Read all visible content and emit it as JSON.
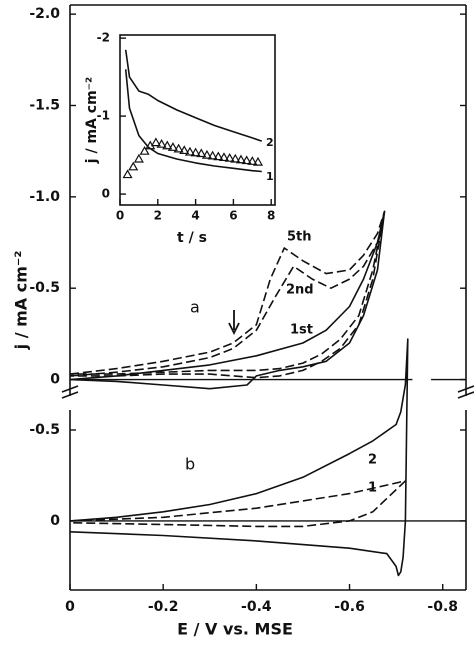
{
  "chart_data": [
    {
      "type": "line",
      "panel_label": "a",
      "ylabel": "j / mA cm⁻²",
      "xlim": [
        0,
        -0.85
      ],
      "ylim": [
        -2.05,
        0.09
      ],
      "yticks": [
        {
          "value": -2,
          "label": "-2.0"
        },
        -1.5,
        {
          "value": -1,
          "label": "-1.0"
        },
        -0.5,
        0
      ],
      "series": [
        {
          "name": "1st",
          "color": "#111111",
          "line_style": "solid",
          "x": [
            0,
            -0.1,
            -0.2,
            -0.3,
            -0.4,
            -0.5,
            -0.55,
            -0.6,
            -0.63,
            -0.66,
            -0.675,
            -0.66,
            -0.63,
            -0.6,
            -0.55,
            -0.5,
            -0.45,
            -0.4,
            -0.38,
            -0.3,
            -0.2,
            -0.1,
            0
          ],
          "values": [
            0,
            -0.02,
            -0.05,
            -0.08,
            -0.13,
            -0.2,
            -0.27,
            -0.4,
            -0.55,
            -0.75,
            -0.92,
            -0.6,
            -0.35,
            -0.2,
            -0.1,
            -0.07,
            -0.05,
            -0.02,
            0.03,
            0.05,
            0.03,
            0.01,
            0
          ]
        },
        {
          "name": "2nd",
          "color": "#111111",
          "line_style": "dashed",
          "x": [
            0,
            -0.1,
            -0.2,
            -0.3,
            -0.35,
            -0.4,
            -0.44,
            -0.48,
            -0.52,
            -0.56,
            -0.6,
            -0.63,
            -0.66,
            -0.675,
            -0.65,
            -0.62,
            -0.58,
            -0.54,
            -0.5,
            -0.45,
            -0.4,
            -0.35,
            -0.3,
            -0.2,
            -0.1,
            0
          ],
          "values": [
            -0.02,
            -0.04,
            -0.07,
            -0.12,
            -0.17,
            -0.27,
            -0.45,
            -0.62,
            -0.55,
            -0.5,
            -0.55,
            -0.62,
            -0.75,
            -0.92,
            -0.55,
            -0.3,
            -0.17,
            -0.1,
            -0.05,
            -0.02,
            -0.01,
            -0.02,
            -0.03,
            -0.03,
            -0.02,
            -0.02
          ]
        },
        {
          "name": "5th",
          "color": "#111111",
          "line_style": "dashed",
          "x": [
            0,
            -0.1,
            -0.2,
            -0.3,
            -0.35,
            -0.4,
            -0.43,
            -0.46,
            -0.5,
            -0.55,
            -0.6,
            -0.63,
            -0.66,
            -0.675,
            -0.65,
            -0.62,
            -0.58,
            -0.54,
            -0.5,
            -0.45,
            -0.4,
            -0.35,
            -0.3,
            -0.2,
            -0.1,
            0
          ],
          "values": [
            -0.03,
            -0.06,
            -0.1,
            -0.15,
            -0.2,
            -0.3,
            -0.55,
            -0.72,
            -0.65,
            -0.58,
            -0.6,
            -0.68,
            -0.8,
            -0.92,
            -0.6,
            -0.35,
            -0.22,
            -0.14,
            -0.09,
            -0.06,
            -0.05,
            -0.05,
            -0.05,
            -0.04,
            -0.03,
            -0.03
          ]
        }
      ]
    },
    {
      "type": "line",
      "panel_label": "b",
      "xlabel": "E / V vs. MSE",
      "xlim": [
        0,
        -0.85
      ],
      "ylim": [
        -0.61,
        0.38
      ],
      "xticks": [
        0,
        -0.2,
        -0.4,
        -0.6,
        -0.8
      ],
      "yticks": [
        -0.5,
        0
      ],
      "series": [
        {
          "name": "1",
          "color": "#111111",
          "line_style": "dashed",
          "x": [
            0,
            -0.2,
            -0.4,
            -0.6,
            -0.72,
            -0.65,
            -0.6,
            -0.5,
            -0.4,
            -0.2,
            0
          ],
          "values": [
            0,
            -0.02,
            -0.07,
            -0.15,
            -0.22,
            -0.05,
            0,
            0.03,
            0.03,
            0.02,
            0.01
          ]
        },
        {
          "name": "2",
          "color": "#111111",
          "line_style": "solid",
          "x": [
            0,
            -0.1,
            -0.2,
            -0.3,
            -0.4,
            -0.5,
            -0.6,
            -0.65,
            -0.7,
            -0.71,
            -0.72,
            -0.725,
            -0.72,
            -0.715,
            -0.71,
            -0.705,
            -0.7,
            -0.68,
            -0.6,
            -0.4,
            -0.2,
            0
          ],
          "values": [
            0,
            -0.02,
            -0.05,
            -0.09,
            -0.15,
            -0.24,
            -0.37,
            -0.44,
            -0.53,
            -0.6,
            -0.75,
            -1.0,
            0,
            0.2,
            0.28,
            0.3,
            0.25,
            0.18,
            0.15,
            0.11,
            0.08,
            0.06
          ]
        }
      ]
    },
    {
      "type": "line",
      "xlabel": "t / s",
      "ylabel": "j / mA cm⁻²",
      "xlim": [
        0,
        8.2
      ],
      "ylim": [
        -2.04,
        0.14
      ],
      "xticks": [
        0,
        2,
        4,
        6,
        8
      ],
      "yticks": [
        -2,
        -1,
        0
      ],
      "series": [
        {
          "name": "1",
          "color": "#111111",
          "line_style": "solid",
          "x": [
            0.3,
            0.5,
            1,
            1.5,
            2,
            3,
            4,
            5,
            6,
            7,
            7.5
          ],
          "values": [
            -1.6,
            -1.1,
            -0.75,
            -0.6,
            -0.52,
            -0.45,
            -0.4,
            -0.36,
            -0.33,
            -0.3,
            -0.29
          ]
        },
        {
          "name": "2",
          "color": "#111111",
          "line_style": "solid",
          "x": [
            0.3,
            0.5,
            1,
            1.5,
            2,
            3,
            4,
            5,
            6,
            7,
            7.5
          ],
          "values": [
            -1.85,
            -1.5,
            -1.32,
            -1.28,
            -1.2,
            -1.08,
            -0.98,
            -0.88,
            -0.8,
            -0.72,
            -0.68
          ]
        },
        {
          "color": "#111111",
          "marker": "triangle",
          "x": [
            0.4,
            0.7,
            1,
            1.3,
            1.6,
            1.9,
            2.2,
            2.5,
            2.8,
            3.1,
            3.4,
            3.7,
            4,
            4.3,
            4.6,
            4.9,
            5.2,
            5.5,
            5.8,
            6.1,
            6.4,
            6.7,
            7,
            7.3
          ],
          "values": [
            -0.25,
            -0.35,
            -0.45,
            -0.55,
            -0.62,
            -0.66,
            -0.64,
            -0.62,
            -0.6,
            -0.58,
            -0.56,
            -0.54,
            -0.53,
            -0.52,
            -0.5,
            -0.49,
            -0.48,
            -0.47,
            -0.46,
            -0.45,
            -0.44,
            -0.43,
            -0.42,
            -0.41
          ]
        }
      ]
    }
  ]
}
